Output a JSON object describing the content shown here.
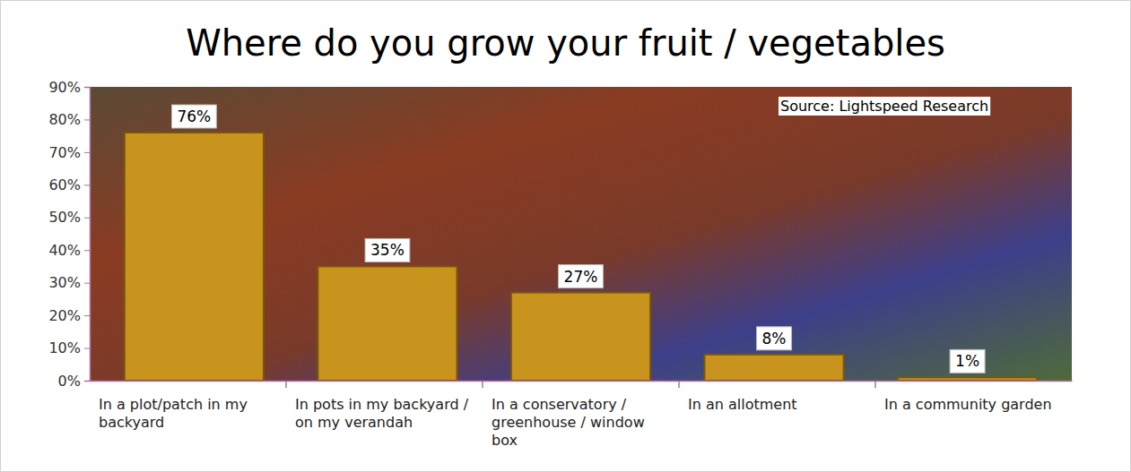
{
  "chart_data": {
    "type": "bar",
    "title": "Where do you grow your fruit / vegetables",
    "annotation": "Source: Lightspeed Research",
    "categories": [
      "In a plot/patch in my backyard",
      "In pots in my backyard / on my verandah",
      "In a conservatory / greenhouse / window box",
      "In an allotment",
      "In a community garden"
    ],
    "values": [
      76,
      35,
      27,
      8,
      1
    ],
    "value_labels": [
      "76%",
      "35%",
      "27%",
      "8%",
      "1%"
    ],
    "data_labels": true,
    "color": "#c8941e",
    "ylim": [
      0,
      90
    ],
    "yticks": [
      {
        "value": 0,
        "label": "0%"
      },
      {
        "value": 10,
        "label": "10%"
      },
      {
        "value": 20,
        "label": "20%"
      },
      {
        "value": 30,
        "label": "30%"
      },
      {
        "value": 40,
        "label": "40%"
      },
      {
        "value": 50,
        "label": "50%"
      },
      {
        "value": 60,
        "label": "60%"
      },
      {
        "value": 70,
        "label": "70%"
      },
      {
        "value": 80,
        "label": "80%"
      },
      {
        "value": 90,
        "label": "90%"
      }
    ],
    "grid": false
  }
}
